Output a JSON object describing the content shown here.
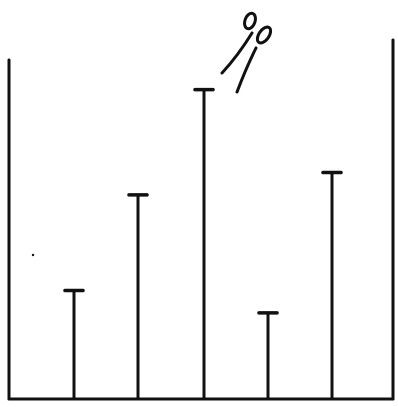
{
  "diagram": {
    "type": "hanging-strings-illustration",
    "ink_color": "#111111",
    "background_color": "#ffffff",
    "strings": [
      {
        "id": 1,
        "relative_length": 0.34
      },
      {
        "id": 2,
        "relative_length": 0.64
      },
      {
        "id": 3,
        "relative_length": 0.97
      },
      {
        "id": 4,
        "relative_length": 0.27
      },
      {
        "id": 5,
        "relative_length": 0.71
      }
    ],
    "icons": [
      {
        "name": "scissors-icon",
        "above_string": 3
      }
    ]
  }
}
